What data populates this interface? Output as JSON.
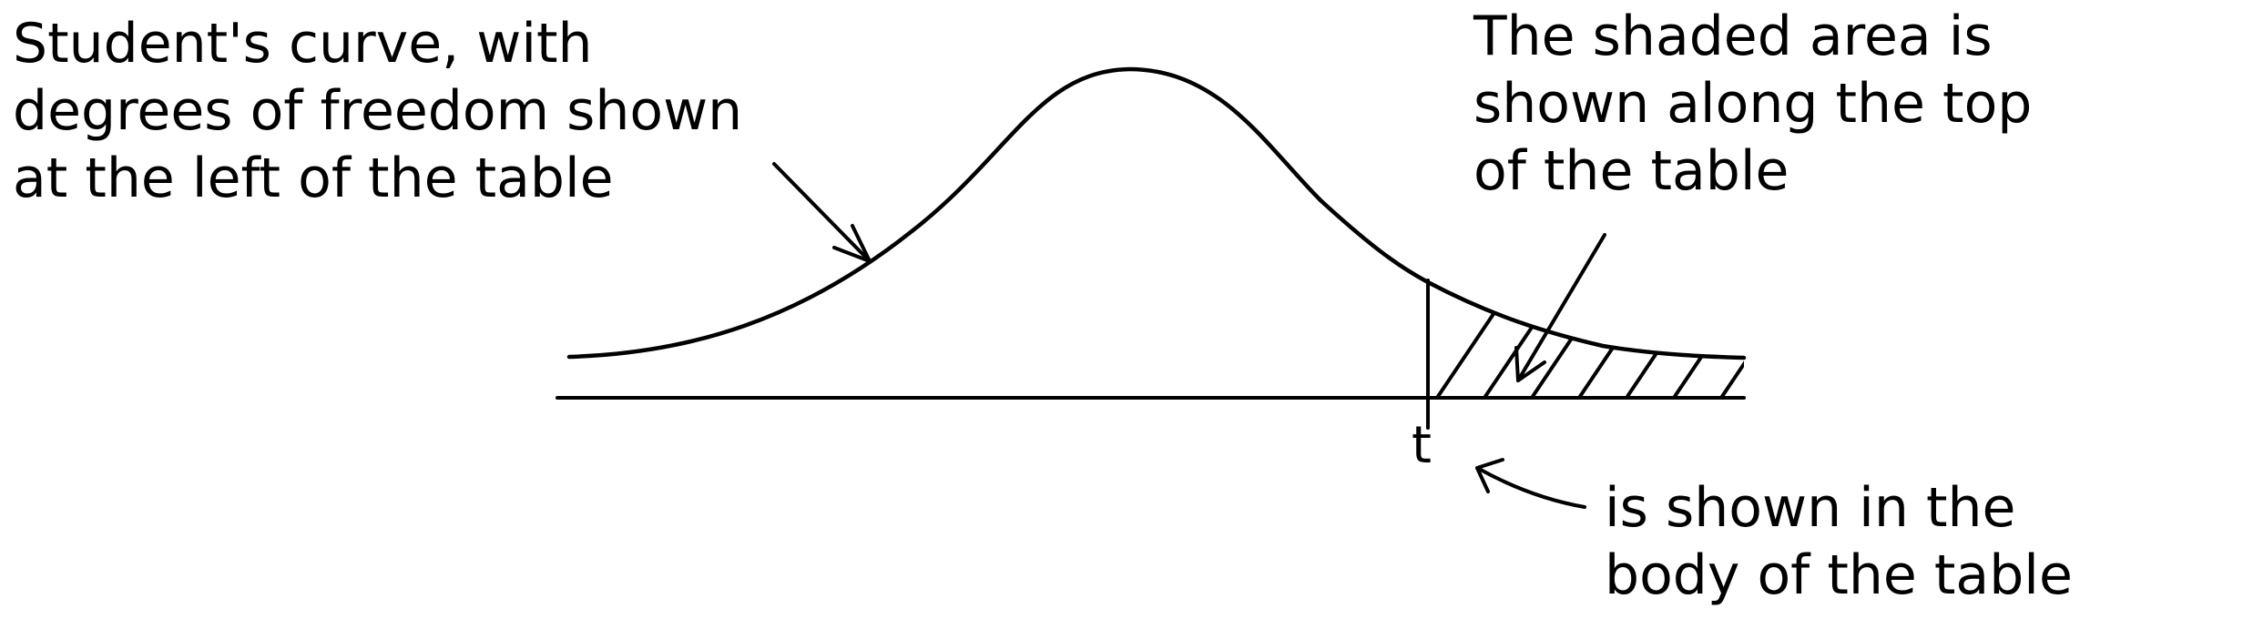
{
  "annotations": {
    "curve_note": {
      "lines": [
        "Student's curve, with",
        "degrees of freedom shown",
        "at the left of the table"
      ]
    },
    "area_note": {
      "lines": [
        "The shaded area is",
        "shown along the top",
        "of the table"
      ]
    },
    "t_note": {
      "lines": [
        "is shown in the",
        "body of the table"
      ]
    }
  },
  "t_label": "t",
  "colors": {
    "ink": "#000000",
    "background": "#ffffff"
  }
}
